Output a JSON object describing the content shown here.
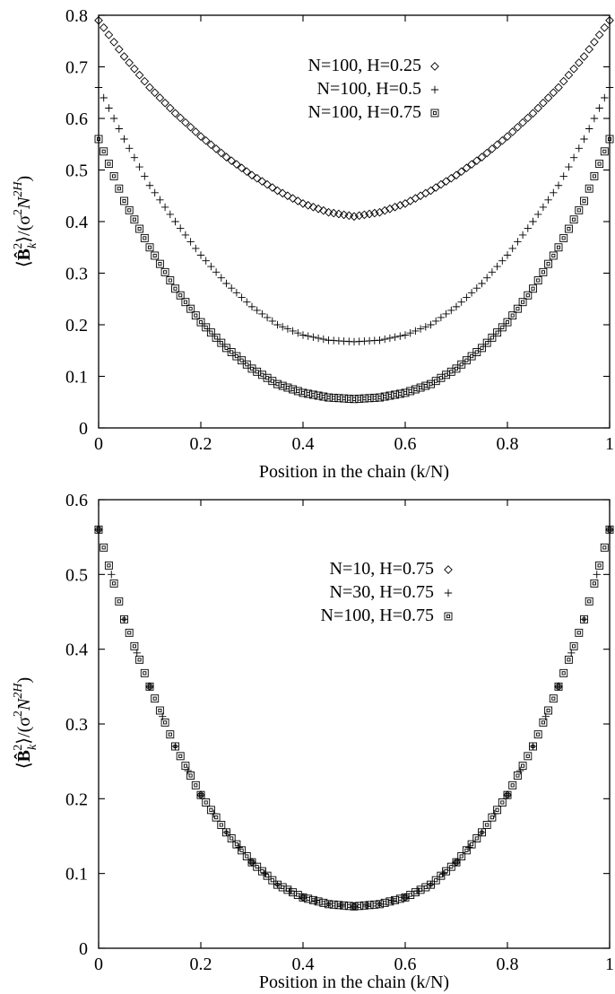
{
  "chart_data": [
    {
      "type": "scatter",
      "title": "",
      "xlabel": "Position in the chain (k/N)",
      "ylabel_parts": {
        "open": "⟨",
        "sym": "B̂",
        "sub": "k",
        "sup": "2",
        "close": "⟩/(σ",
        "sigma_exp": "2",
        "N": "N",
        "N_exp": "2H",
        "end": ")"
      },
      "xlim": [
        0,
        1
      ],
      "ylim": [
        0,
        0.8
      ],
      "xticks": [
        "0",
        "0.2",
        "0.4",
        "0.6",
        "0.8",
        "1"
      ],
      "yticks": [
        "0",
        "0.1",
        "0.2",
        "0.3",
        "0.4",
        "0.5",
        "0.6",
        "0.7",
        "0.8"
      ],
      "legend_position": "top-center",
      "grid": false,
      "series": [
        {
          "name": "N=100, H=0.25",
          "marker": "diamond",
          "x": [
            0,
            0.05,
            0.1,
            0.15,
            0.2,
            0.25,
            0.3,
            0.35,
            0.4,
            0.45,
            0.5,
            0.55,
            0.6,
            0.65,
            0.7,
            0.75,
            0.8,
            0.85,
            0.9,
            0.95,
            1
          ],
          "y": [
            0.79,
            0.72,
            0.66,
            0.61,
            0.565,
            0.525,
            0.49,
            0.46,
            0.435,
            0.418,
            0.41,
            0.418,
            0.435,
            0.46,
            0.49,
            0.525,
            0.565,
            0.61,
            0.66,
            0.72,
            0.79
          ]
        },
        {
          "name": "N=100, H=0.5",
          "marker": "plus",
          "x": [
            0,
            0.05,
            0.1,
            0.15,
            0.2,
            0.25,
            0.3,
            0.35,
            0.4,
            0.45,
            0.5,
            0.55,
            0.6,
            0.65,
            0.7,
            0.75,
            0.8,
            0.85,
            0.9,
            0.95,
            1
          ],
          "y": [
            0.66,
            0.56,
            0.47,
            0.4,
            0.335,
            0.28,
            0.235,
            0.2,
            0.18,
            0.17,
            0.167,
            0.17,
            0.18,
            0.2,
            0.235,
            0.28,
            0.335,
            0.4,
            0.47,
            0.56,
            0.66
          ]
        },
        {
          "name": "N=100, H=0.75",
          "marker": "square",
          "x": [
            0,
            0.05,
            0.1,
            0.15,
            0.2,
            0.25,
            0.3,
            0.35,
            0.4,
            0.45,
            0.5,
            0.55,
            0.6,
            0.65,
            0.7,
            0.75,
            0.8,
            0.85,
            0.9,
            0.95,
            1
          ],
          "y": [
            0.56,
            0.44,
            0.35,
            0.27,
            0.205,
            0.155,
            0.115,
            0.085,
            0.068,
            0.059,
            0.056,
            0.059,
            0.068,
            0.085,
            0.115,
            0.155,
            0.205,
            0.27,
            0.35,
            0.44,
            0.56
          ]
        }
      ]
    },
    {
      "type": "scatter",
      "title": "",
      "xlabel": "Position in the chain (k/N)",
      "ylabel_parts": {
        "open": "⟨",
        "sym": "B̂",
        "sub": "k",
        "sup": "2",
        "close": "⟩/(σ",
        "sigma_exp": "2",
        "N": "N",
        "N_exp": "2H",
        "end": ")"
      },
      "xlim": [
        0,
        1
      ],
      "ylim": [
        0,
        0.6
      ],
      "xticks": [
        "0",
        "0.2",
        "0.4",
        "0.6",
        "0.8",
        "1"
      ],
      "yticks": [
        "0",
        "0.1",
        "0.2",
        "0.3",
        "0.4",
        "0.5",
        "0.6"
      ],
      "legend_position": "top-center",
      "grid": false,
      "series": [
        {
          "name": "N=10, H=0.75",
          "marker": "diamond",
          "x": [
            0,
            0.1,
            0.2,
            0.3,
            0.4,
            0.5,
            0.6,
            0.7,
            0.8,
            0.9,
            1
          ],
          "y": [
            0.56,
            0.35,
            0.205,
            0.115,
            0.068,
            0.056,
            0.068,
            0.115,
            0.205,
            0.35,
            0.56
          ]
        },
        {
          "name": "N=30, H=0.75",
          "marker": "plus",
          "x": [
            0,
            0.05,
            0.1,
            0.15,
            0.2,
            0.25,
            0.3,
            0.35,
            0.4,
            0.45,
            0.5,
            0.55,
            0.6,
            0.65,
            0.7,
            0.75,
            0.8,
            0.85,
            0.9,
            0.95,
            1
          ],
          "y": [
            0.56,
            0.44,
            0.35,
            0.27,
            0.205,
            0.155,
            0.115,
            0.085,
            0.068,
            0.059,
            0.056,
            0.059,
            0.068,
            0.085,
            0.115,
            0.155,
            0.205,
            0.27,
            0.35,
            0.44,
            0.56
          ]
        },
        {
          "name": "N=100, H=0.75",
          "marker": "square",
          "x": [
            0,
            0.05,
            0.1,
            0.15,
            0.2,
            0.25,
            0.3,
            0.35,
            0.4,
            0.45,
            0.5,
            0.55,
            0.6,
            0.65,
            0.7,
            0.75,
            0.8,
            0.85,
            0.9,
            0.95,
            1
          ],
          "y": [
            0.56,
            0.44,
            0.35,
            0.27,
            0.205,
            0.155,
            0.115,
            0.085,
            0.068,
            0.059,
            0.056,
            0.059,
            0.068,
            0.085,
            0.115,
            0.155,
            0.205,
            0.27,
            0.35,
            0.44,
            0.56
          ]
        }
      ]
    }
  ]
}
